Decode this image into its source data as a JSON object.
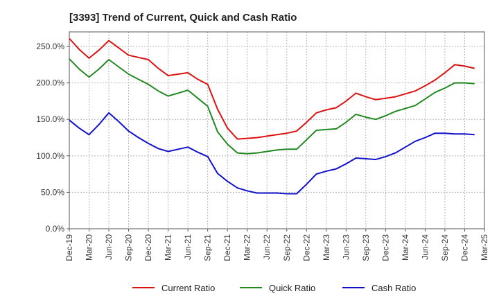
{
  "chart_data": {
    "type": "line",
    "title": "[3393]  Trend of Current, Quick and Cash Ratio",
    "xlabel": "",
    "ylabel": "",
    "ylim": [
      0,
      270
    ],
    "yticks": [
      0,
      50,
      100,
      150,
      200,
      250
    ],
    "ytick_labels": [
      "0.0%",
      "50.0%",
      "100.0%",
      "150.0%",
      "200.0%",
      "250.0%"
    ],
    "x_tick_labels": [
      "Dec-19",
      "Mar-20",
      "Jun-20",
      "Sep-20",
      "Dec-20",
      "Mar-21",
      "Jun-21",
      "Sep-21",
      "Dec-21",
      "Mar-22",
      "Jun-22",
      "Sep-22",
      "Dec-22",
      "Mar-23",
      "Jun-23",
      "Sep-23",
      "Dec-23",
      "Mar-24",
      "Jun-24",
      "Sep-24",
      "Dec-24",
      "Mar-25"
    ],
    "grid": true,
    "legend_position": "bottom",
    "series": [
      {
        "name": "Current Ratio",
        "color": "#dd1111",
        "values": [
          261,
          246,
          234,
          245,
          258,
          248,
          238,
          235,
          232,
          220,
          210,
          212,
          214,
          205,
          198,
          164,
          138,
          123,
          124,
          125,
          127,
          129,
          131,
          134,
          146,
          159,
          163,
          166,
          175,
          186,
          181,
          177,
          179,
          181,
          185,
          189,
          196,
          204,
          214,
          225,
          223,
          220
        ]
      },
      {
        "name": "Quick Ratio",
        "color": "#228822",
        "values": [
          233,
          219,
          208,
          219,
          232,
          222,
          212,
          205,
          198,
          189,
          182,
          186,
          190,
          179,
          168,
          133,
          116,
          104,
          103,
          104,
          106,
          108,
          109,
          109,
          122,
          135,
          136,
          137,
          146,
          157,
          153,
          150,
          155,
          161,
          165,
          169,
          178,
          187,
          193,
          200,
          200,
          199
        ]
      },
      {
        "name": "Cash Ratio",
        "color": "#1111cc",
        "values": [
          149,
          138,
          129,
          143,
          159,
          147,
          134,
          125,
          117,
          110,
          106,
          109,
          112,
          105,
          99,
          76,
          65,
          56,
          52,
          49,
          49,
          49,
          48,
          48,
          61,
          75,
          79,
          82,
          89,
          97,
          96,
          95,
          99,
          104,
          112,
          120,
          125,
          131,
          131,
          130,
          130,
          129
        ]
      }
    ]
  }
}
